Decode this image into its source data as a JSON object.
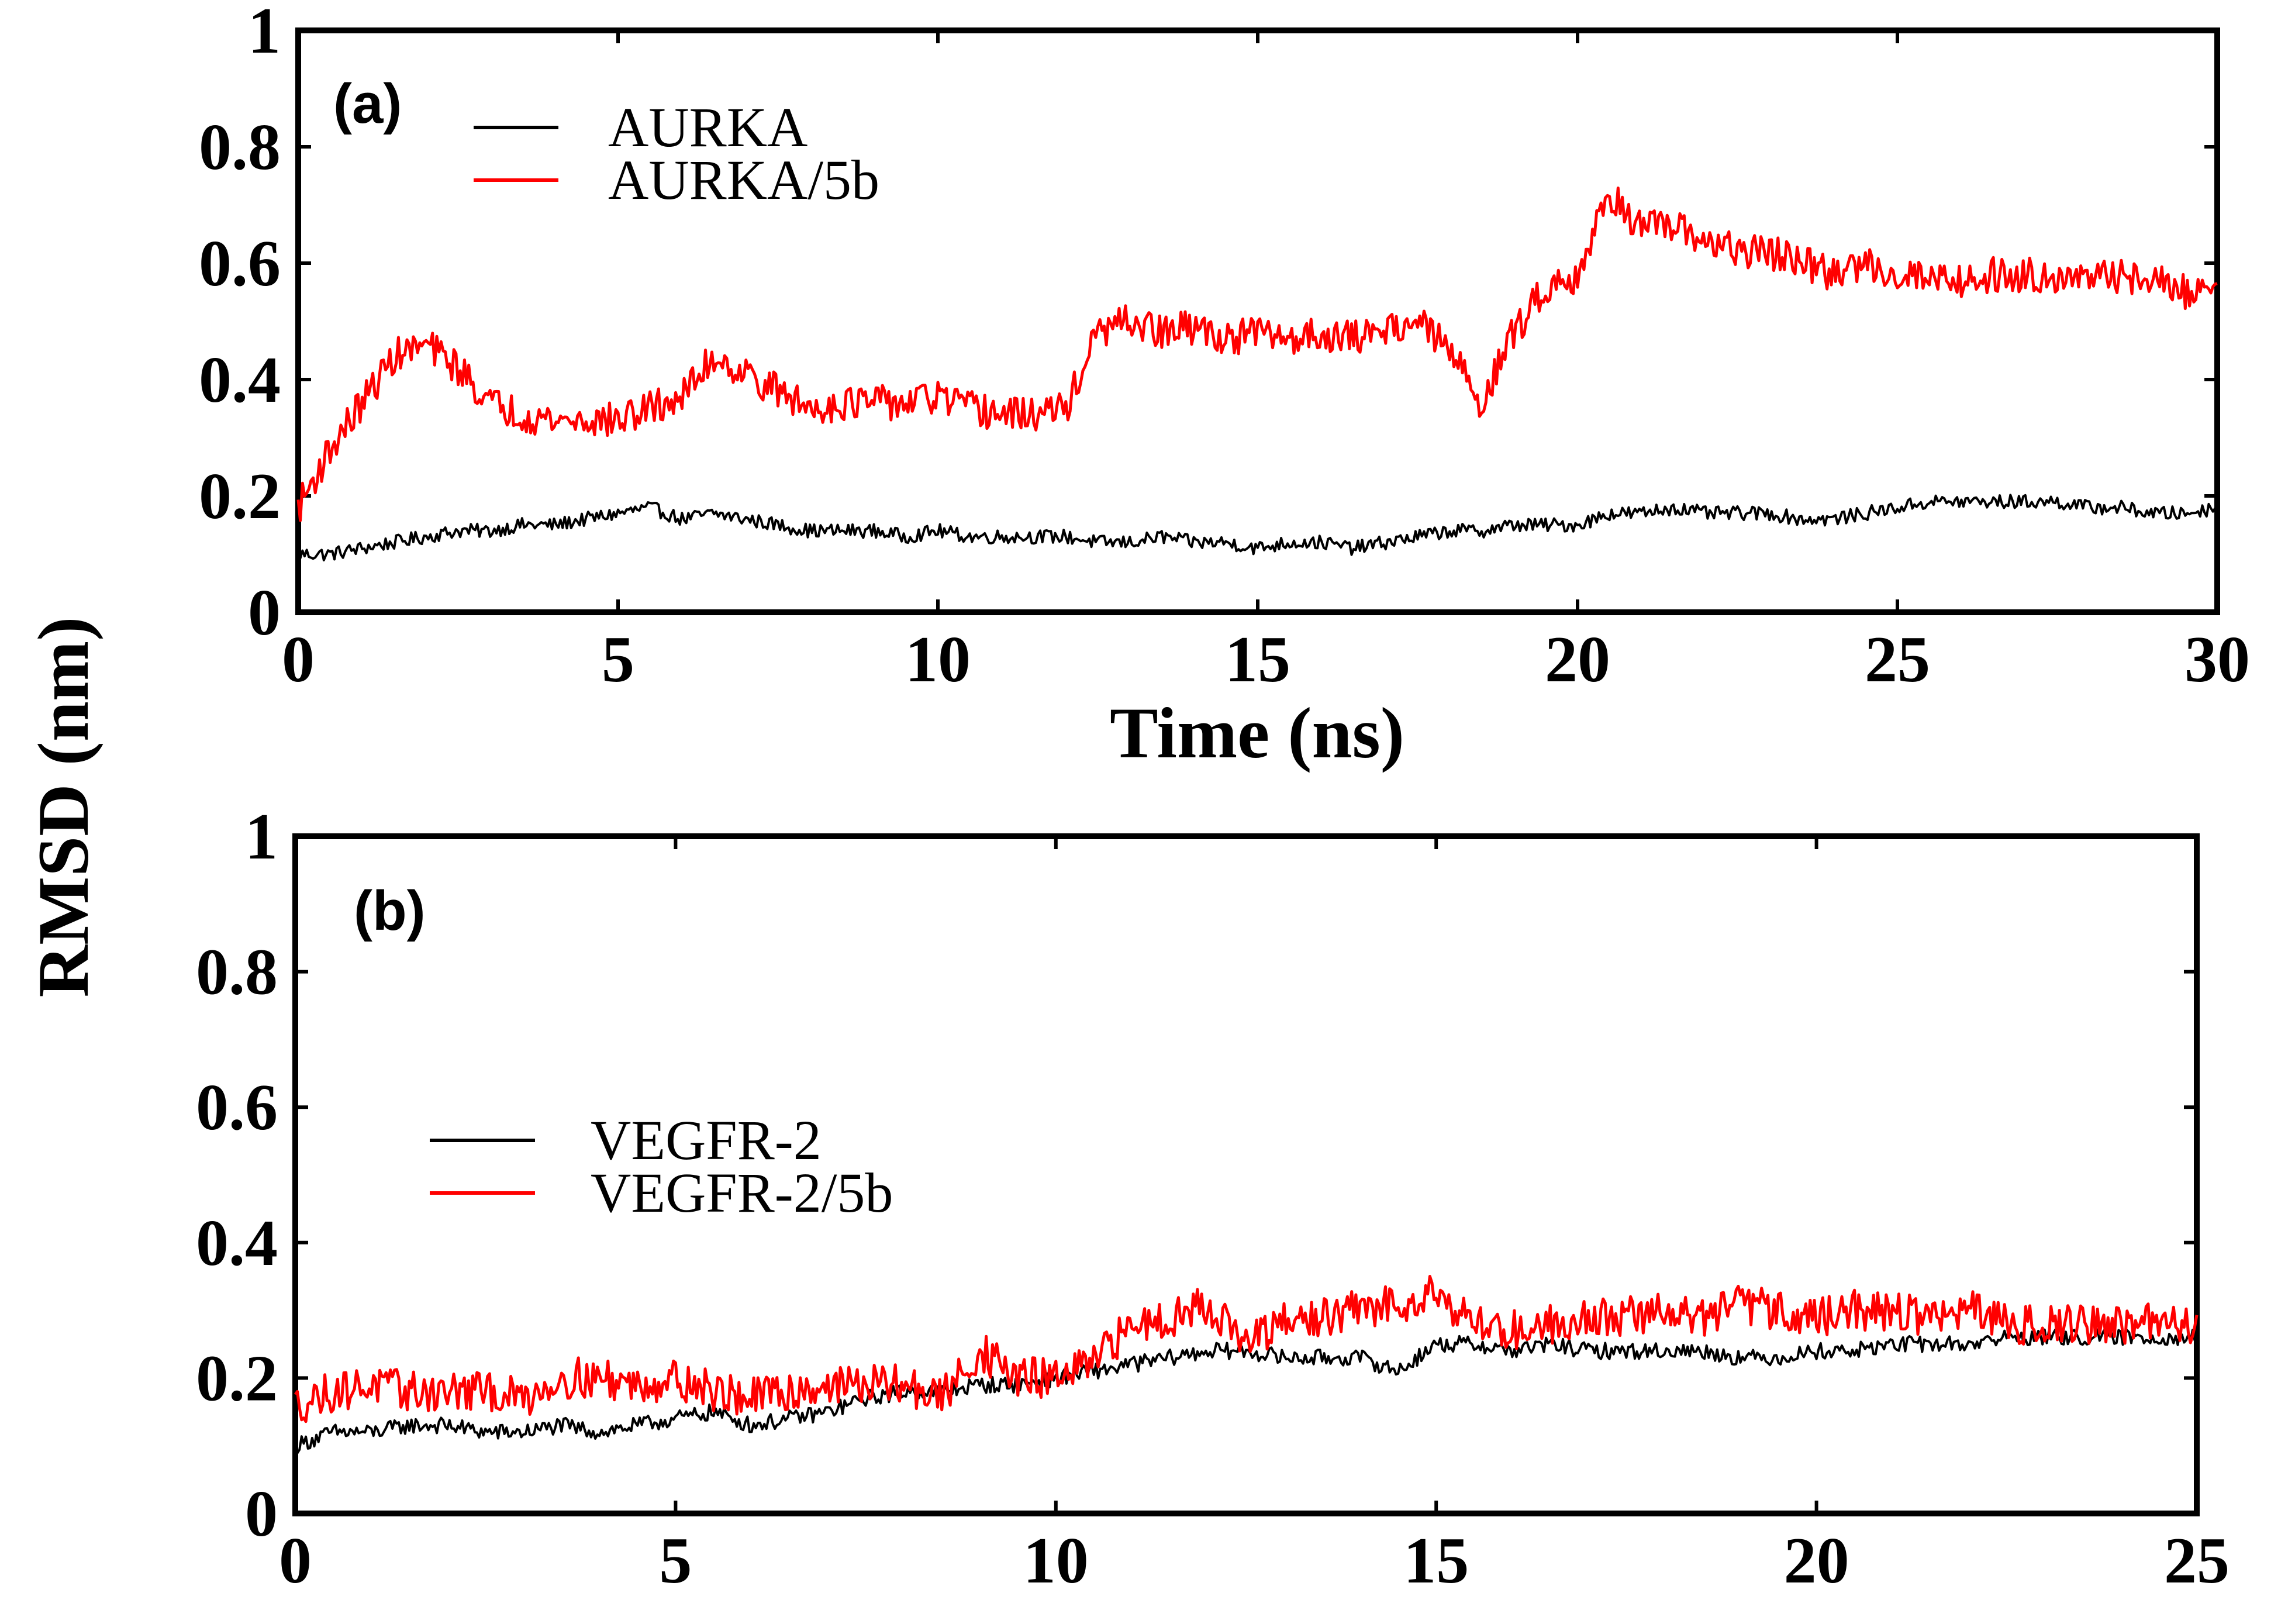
{
  "figure": {
    "ylabel": "RMSD (nm)"
  },
  "chart_data": [
    {
      "type": "line",
      "panel_label": "(a)",
      "xlabel": "Time (ns)",
      "ylabel": "RMSD (nm)",
      "xlim": [
        0,
        30
      ],
      "ylim": [
        0,
        1
      ],
      "xticks": [
        "0",
        "5",
        "10",
        "15",
        "20",
        "25",
        "30"
      ],
      "yticks": [
        "0",
        "0.2",
        "0.4",
        "0.6",
        "0.8",
        "1"
      ],
      "legend_position": "top-left",
      "series": [
        {
          "name": "AURKA",
          "color": "#000000",
          "x": [
            0,
            0.5,
            1,
            1.5,
            2,
            2.5,
            3,
            3.5,
            4,
            4.5,
            5,
            5.5,
            6,
            6.5,
            7,
            7.5,
            8,
            8.5,
            9,
            9.5,
            10,
            10.5,
            11,
            11.5,
            12,
            12.5,
            13,
            13.5,
            14,
            14.5,
            15,
            15.5,
            16,
            16.5,
            17,
            17.5,
            18,
            18.5,
            19,
            19.5,
            20,
            20.5,
            21,
            21.5,
            22,
            22.5,
            23,
            23.5,
            24,
            24.5,
            25,
            25.5,
            26,
            26.5,
            27,
            27.5,
            28,
            28.5,
            29,
            29.5,
            30
          ],
          "y": [
            0.1,
            0.1,
            0.11,
            0.12,
            0.13,
            0.14,
            0.14,
            0.15,
            0.15,
            0.16,
            0.17,
            0.18,
            0.16,
            0.17,
            0.16,
            0.15,
            0.14,
            0.14,
            0.14,
            0.13,
            0.14,
            0.13,
            0.13,
            0.13,
            0.13,
            0.12,
            0.12,
            0.13,
            0.12,
            0.12,
            0.11,
            0.12,
            0.12,
            0.11,
            0.12,
            0.13,
            0.14,
            0.14,
            0.15,
            0.15,
            0.15,
            0.17,
            0.17,
            0.18,
            0.17,
            0.17,
            0.17,
            0.16,
            0.16,
            0.17,
            0.18,
            0.19,
            0.19,
            0.19,
            0.19,
            0.19,
            0.18,
            0.18,
            0.17,
            0.17,
            0.18
          ]
        },
        {
          "name": "AURKA/5b",
          "color": "#ff0000",
          "x": [
            0,
            0.5,
            1,
            1.5,
            2,
            2.5,
            3,
            3.5,
            4,
            4.5,
            5,
            5.5,
            6,
            6.5,
            7,
            7.5,
            8,
            8.5,
            9,
            9.5,
            10,
            10.5,
            11,
            11.5,
            12,
            12.5,
            13,
            13.5,
            14,
            14.5,
            15,
            15.5,
            16,
            16.5,
            17,
            17.5,
            18,
            18.5,
            19,
            19.5,
            20,
            20.5,
            21,
            21.5,
            22,
            22.5,
            23,
            23.5,
            24,
            24.5,
            25,
            25.5,
            26,
            26.5,
            27,
            27.5,
            28,
            28.5,
            29,
            29.5,
            30
          ],
          "y": [
            0.18,
            0.28,
            0.36,
            0.44,
            0.46,
            0.42,
            0.36,
            0.34,
            0.33,
            0.33,
            0.33,
            0.35,
            0.37,
            0.44,
            0.41,
            0.38,
            0.35,
            0.36,
            0.36,
            0.36,
            0.37,
            0.35,
            0.34,
            0.34,
            0.35,
            0.48,
            0.5,
            0.48,
            0.49,
            0.47,
            0.48,
            0.47,
            0.48,
            0.47,
            0.49,
            0.5,
            0.45,
            0.36,
            0.48,
            0.56,
            0.58,
            0.72,
            0.66,
            0.66,
            0.64,
            0.62,
            0.62,
            0.6,
            0.58,
            0.6,
            0.58,
            0.58,
            0.57,
            0.58,
            0.58,
            0.58,
            0.57,
            0.58,
            0.57,
            0.55,
            0.56
          ]
        }
      ]
    },
    {
      "type": "line",
      "panel_label": "(b)",
      "xlabel": "",
      "ylabel": "RMSD (nm)",
      "xlim": [
        0,
        25
      ],
      "ylim": [
        0,
        1
      ],
      "xticks": [
        "0",
        "5",
        "10",
        "15",
        "20",
        "25"
      ],
      "yticks": [
        "0",
        "0.2",
        "0.4",
        "0.6",
        "0.8",
        "1"
      ],
      "legend_position": "center-left",
      "series": [
        {
          "name": "VEGFR-2",
          "color": "#000000",
          "x": [
            0,
            0.5,
            1,
            1.5,
            2,
            2.5,
            3,
            3.5,
            4,
            4.5,
            5,
            5.5,
            6,
            6.5,
            7,
            7.5,
            8,
            8.5,
            9,
            9.5,
            10,
            10.5,
            11,
            11.5,
            12,
            12.5,
            13,
            13.5,
            14,
            14.5,
            15,
            15.5,
            16,
            16.5,
            17,
            17.5,
            18,
            18.5,
            19,
            19.5,
            20,
            20.5,
            21,
            21.5,
            22,
            22.5,
            23,
            23.5,
            24,
            24.5,
            25
          ],
          "y": [
            0.1,
            0.12,
            0.12,
            0.13,
            0.13,
            0.12,
            0.12,
            0.13,
            0.12,
            0.13,
            0.14,
            0.15,
            0.13,
            0.14,
            0.15,
            0.17,
            0.18,
            0.18,
            0.19,
            0.19,
            0.2,
            0.21,
            0.22,
            0.23,
            0.24,
            0.24,
            0.23,
            0.23,
            0.23,
            0.21,
            0.25,
            0.25,
            0.24,
            0.25,
            0.24,
            0.24,
            0.24,
            0.24,
            0.23,
            0.23,
            0.24,
            0.24,
            0.25,
            0.25,
            0.25,
            0.26,
            0.26,
            0.26,
            0.26,
            0.26,
            0.26
          ]
        },
        {
          "name": "VEGFR-2/5b",
          "color": "#ff0000",
          "x": [
            0,
            0.5,
            1,
            1.5,
            2,
            2.5,
            3,
            3.5,
            4,
            4.5,
            5,
            5.5,
            6,
            6.5,
            7,
            7.5,
            8,
            8.5,
            9,
            9.5,
            10,
            10.5,
            11,
            11.5,
            12,
            12.5,
            13,
            13.5,
            14,
            14.5,
            15,
            15.5,
            16,
            16.5,
            17,
            17.5,
            18,
            18.5,
            19,
            19.5,
            20,
            20.5,
            21,
            21.5,
            22,
            22.5,
            23,
            23.5,
            24,
            24.5,
            25
          ],
          "y": [
            0.16,
            0.18,
            0.19,
            0.18,
            0.18,
            0.18,
            0.17,
            0.2,
            0.2,
            0.19,
            0.2,
            0.18,
            0.17,
            0.18,
            0.19,
            0.19,
            0.19,
            0.17,
            0.24,
            0.2,
            0.2,
            0.22,
            0.28,
            0.29,
            0.31,
            0.25,
            0.28,
            0.29,
            0.3,
            0.31,
            0.33,
            0.28,
            0.27,
            0.28,
            0.29,
            0.29,
            0.3,
            0.29,
            0.31,
            0.3,
            0.29,
            0.3,
            0.3,
            0.29,
            0.3,
            0.28,
            0.28,
            0.28,
            0.28,
            0.28,
            0.28
          ]
        }
      ]
    }
  ]
}
